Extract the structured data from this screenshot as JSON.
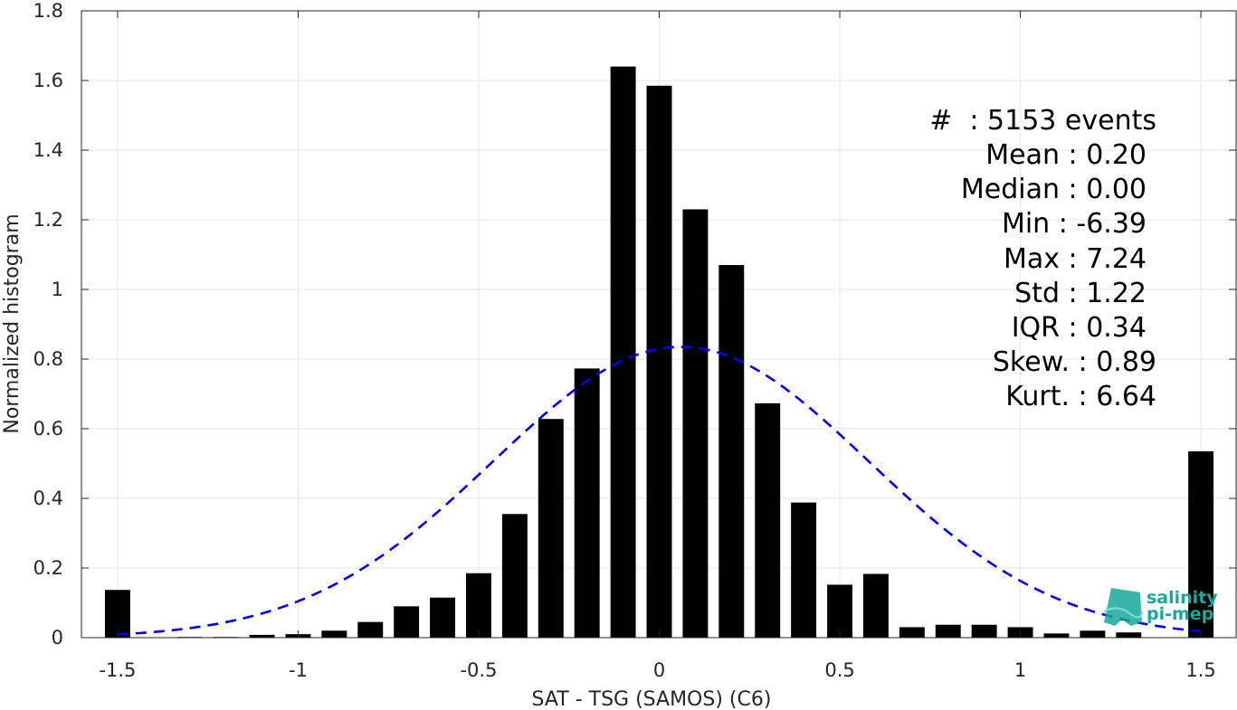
{
  "chart_data": {
    "type": "bar",
    "xlabel": "SAT - TSG (SAMOS) (C6)",
    "ylabel": "Normalized histogram",
    "xlim": [
      -1.6,
      1.6
    ],
    "ylim": [
      0,
      1.8
    ],
    "x_ticks": [
      -1.5,
      -1,
      -0.5,
      0,
      0.5,
      1,
      1.5
    ],
    "x_tick_labels": [
      "-1.5",
      "-1",
      "-0.5",
      "0",
      "0.5",
      "1",
      "1.5"
    ],
    "y_ticks": [
      0,
      0.2,
      0.4,
      0.6,
      0.8,
      1,
      1.2,
      1.4,
      1.6,
      1.8
    ],
    "y_tick_labels": [
      "0",
      "0.2",
      "0.4",
      "0.6",
      "0.8",
      "1",
      "1.2",
      "1.4",
      "1.6",
      "1.8"
    ],
    "grid": true,
    "bar_color": "#000000",
    "x": [
      -1.5,
      -1.4,
      -1.3,
      -1.2,
      -1.1,
      -1.0,
      -0.9,
      -0.8,
      -0.7,
      -0.6,
      -0.5,
      -0.4,
      -0.3,
      -0.2,
      -0.1,
      0.0,
      0.1,
      0.2,
      0.3,
      0.4,
      0.5,
      0.6,
      0.7,
      0.8,
      0.9,
      1.0,
      1.1,
      1.2,
      1.3,
      1.5
    ],
    "values": [
      0.137,
      0.0,
      0.002,
      0.002,
      0.008,
      0.01,
      0.02,
      0.045,
      0.09,
      0.115,
      0.185,
      0.355,
      0.628,
      0.773,
      1.64,
      1.585,
      1.23,
      1.07,
      0.673,
      0.388,
      0.152,
      0.183,
      0.03,
      0.037,
      0.037,
      0.03,
      0.012,
      0.02,
      0.015,
      0.535
    ],
    "fit_curve": {
      "type": "gaussian",
      "style": "dashed",
      "color": "#0000ee",
      "peak": 0.835,
      "mean": 0.06,
      "sigma": 0.52,
      "x_range": [
        -1.5,
        1.5
      ]
    },
    "annotations": [
      "#  : 5153 events",
      "Mean : 0.20",
      "Median : 0.00",
      "Min : -6.39",
      "Max : 7.24",
      "Std : 1.22",
      "IQR : 0.34",
      "Skew. : 0.89",
      "Kurt. : 6.64"
    ]
  },
  "logo": {
    "line1": "salinity",
    "line2": "pi-mep",
    "color": "#1aa89a"
  }
}
